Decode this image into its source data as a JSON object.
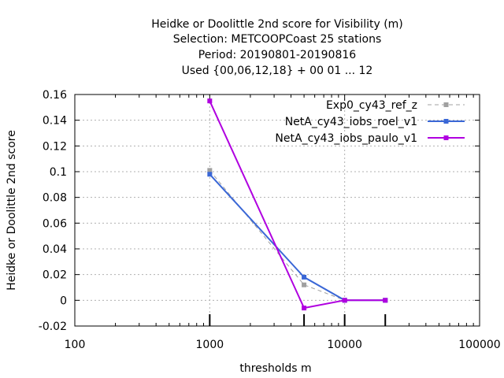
{
  "chart_data": {
    "type": "line",
    "title_lines": [
      "Heidke or Doolittle 2nd score  for Visibility (m)",
      "Selection: METCOOPCoast     25 stations",
      "Period: 20190801-20190816",
      "Used {00,06,12,18} + 00 01 ... 12"
    ],
    "xlabel": "thresholds m",
    "ylabel": "Heidke or Doolittle 2nd score",
    "x_scale": "log",
    "xlim": [
      100,
      100000
    ],
    "ylim": [
      -0.02,
      0.16
    ],
    "x_ticks": [
      100,
      1000,
      10000,
      100000
    ],
    "x_tick_labels": [
      "100",
      "1000",
      "10000",
      "100000"
    ],
    "y_ticks": [
      -0.02,
      0,
      0.02,
      0.04,
      0.06,
      0.08,
      0.1,
      0.12,
      0.14,
      0.16
    ],
    "y_tick_labels": [
      "-0.02",
      "0",
      "0.02",
      "0.04",
      "0.06",
      "0.08",
      "0.1",
      "0.12",
      "0.14",
      "0.16"
    ],
    "grid": true,
    "legend_position": "top-right",
    "sample_bars_x": [
      1000,
      5000,
      10000,
      20000
    ],
    "series": [
      {
        "name": "Exp0_cy43_ref_z",
        "color": "#a0a0a0",
        "dashed": true,
        "x": [
          1000,
          5000,
          10000,
          20000
        ],
        "y": [
          0.101,
          0.012,
          0.0,
          0.0
        ]
      },
      {
        "name": "NetA_cy43_iobs_roel_v1",
        "color": "#3a67d6",
        "dashed": false,
        "x": [
          1000,
          5000,
          10000,
          20000
        ],
        "y": [
          0.098,
          0.018,
          0.0,
          0.0
        ]
      },
      {
        "name": "NetA_cy43_iobs_paulo_v1",
        "color": "#b000e0",
        "dashed": false,
        "x": [
          1000,
          5000,
          10000,
          20000
        ],
        "y": [
          0.155,
          -0.006,
          0.0,
          0.0
        ]
      }
    ]
  }
}
